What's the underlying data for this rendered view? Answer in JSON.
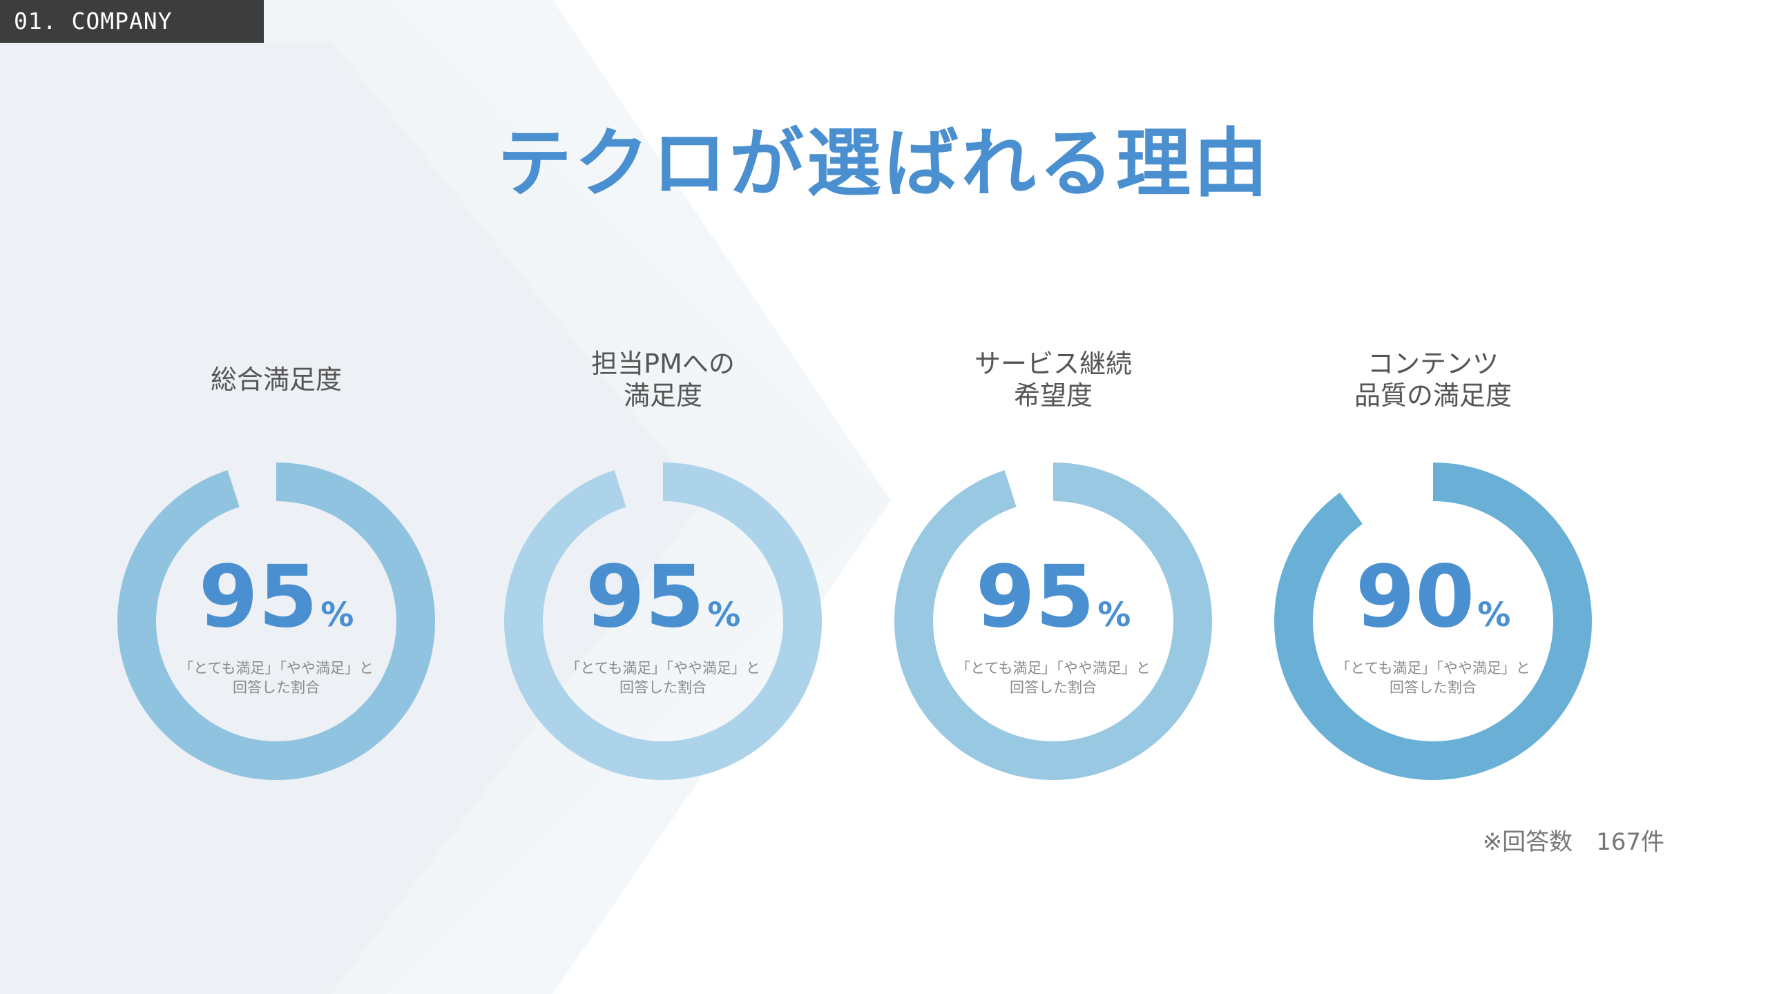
{
  "section_tag": "01. COMPANY",
  "headline": "テクロが選ばれる理由",
  "chart_data": {
    "type": "donut",
    "max": 100,
    "unit": "%",
    "note_line1": "「とても満足」「やや満足」と",
    "note_line2": "回答した割合",
    "gauges": [
      {
        "label_line1": "総合満足度",
        "label_line2": "",
        "value": 95,
        "color": "#8fc3e0"
      },
      {
        "label_line1": "担当PMへの",
        "label_line2": "満足度",
        "value": 95,
        "color": "#acd3ea"
      },
      {
        "label_line1": "サービス継続",
        "label_line2": "希望度",
        "value": 95,
        "color": "#99c8e2"
      },
      {
        "label_line1": "コンテンツ",
        "label_line2": "品質の満足度",
        "value": 90,
        "color": "#6ab0d6"
      }
    ]
  },
  "footnote": "※回答数　167件"
}
